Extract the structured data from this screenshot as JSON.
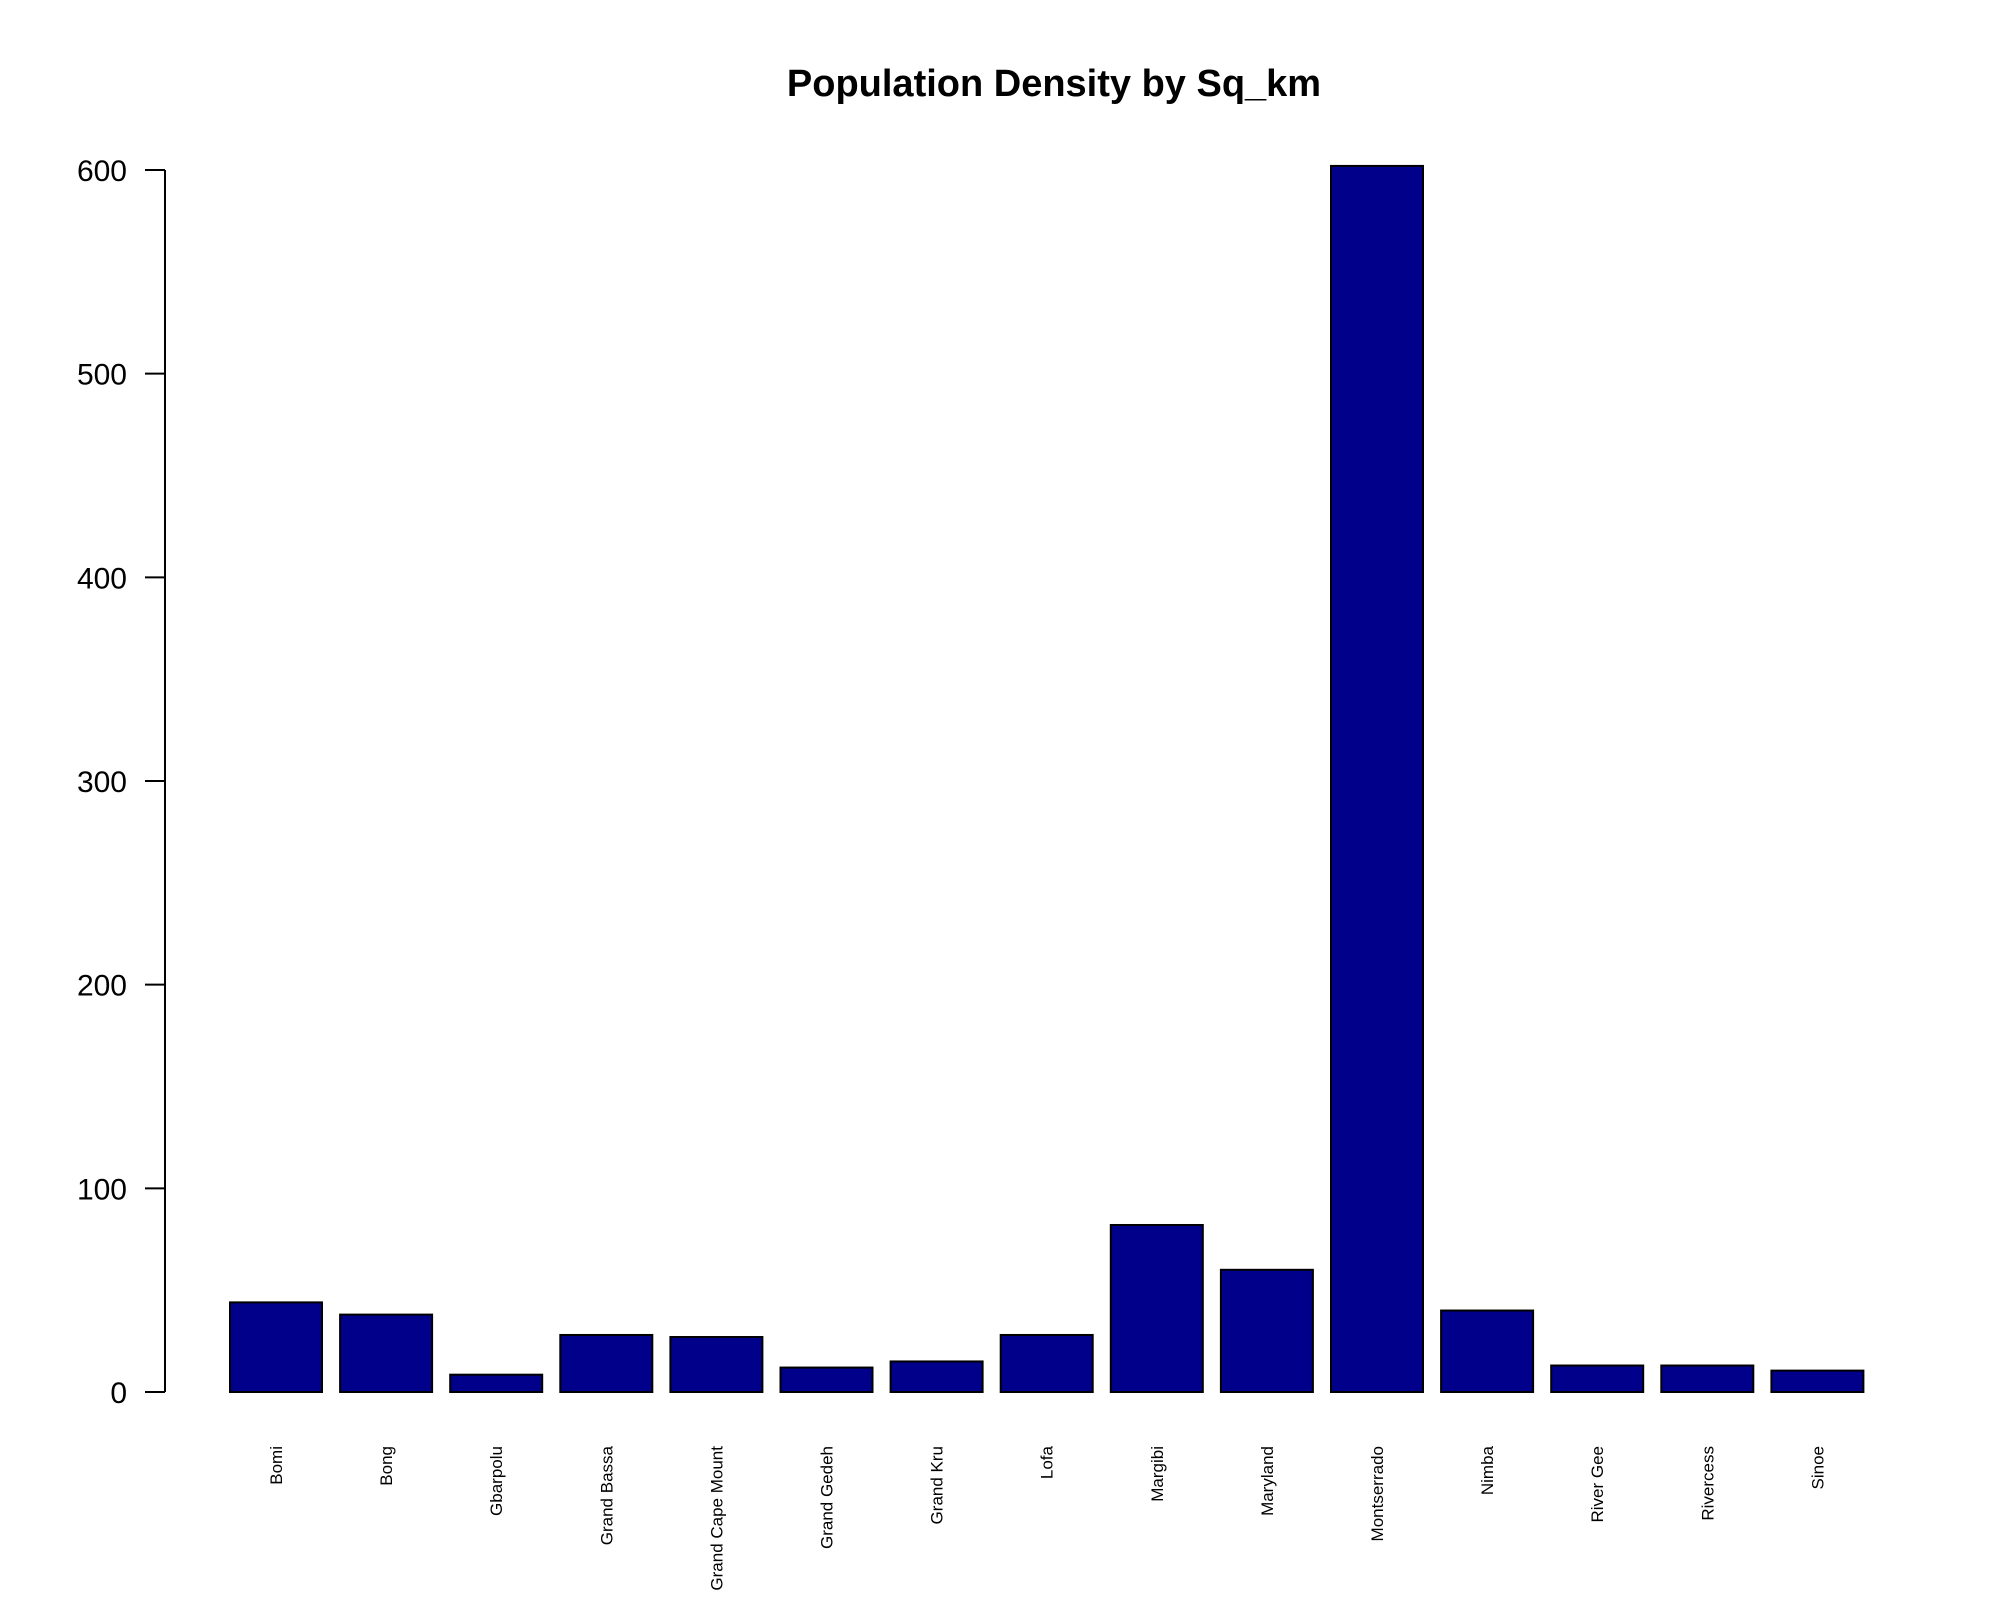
{
  "chart_data": {
    "type": "bar",
    "title": "Population Density by Sq_km",
    "xlabel": "",
    "ylabel": "",
    "categories": [
      "Bomi",
      "Bong",
      "Gbarpolu",
      "Grand Bassa",
      "Grand Cape Mount",
      "Grand Gedeh",
      "Grand Kru",
      "Lofa",
      "Margibi",
      "Maryland",
      "Montserrado",
      "Nimba",
      "River Gee",
      "Rivercess",
      "Sinoe"
    ],
    "values": [
      44,
      38,
      8.5,
      28,
      27,
      12,
      15,
      28,
      82,
      60,
      602,
      40,
      13,
      13,
      10.5
    ],
    "ylim": [
      0,
      600
    ],
    "yticks": [
      "0",
      "100",
      "200",
      "300",
      "400",
      "500",
      "600"
    ],
    "grid": false,
    "legend": "none",
    "colors": {
      "bar_fill": "#00008B",
      "bar_stroke": "#000000",
      "axis": "#000000"
    }
  }
}
